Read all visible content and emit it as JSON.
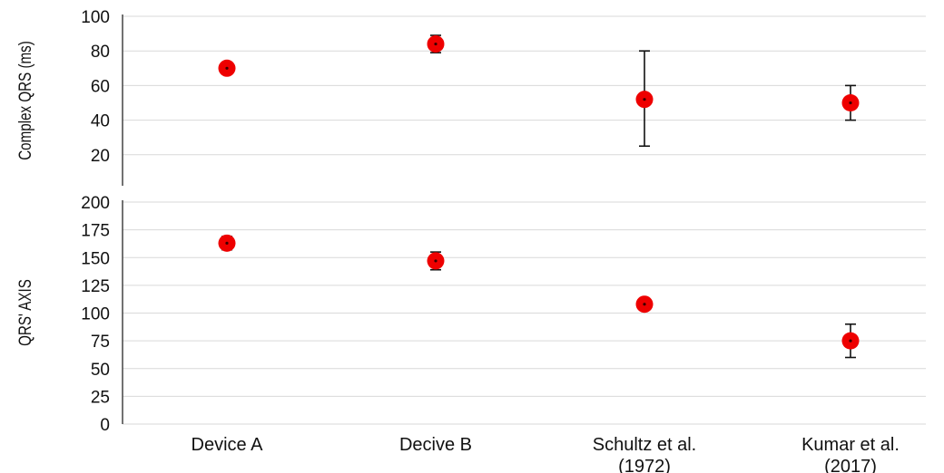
{
  "chart_data": [
    {
      "type": "scatter",
      "ylabel": "Complex QRS (ms)",
      "ylim": [
        20,
        100
      ],
      "yticks": [
        20,
        40,
        60,
        80,
        100
      ],
      "grid": true,
      "categories": [
        "Device A",
        "Decive B",
        "Schultz et al. (1972)",
        "Kumar et al. (2017)"
      ],
      "values": [
        70,
        84,
        52,
        50
      ],
      "error_low": [
        67,
        79,
        25,
        40
      ],
      "error_high": [
        73,
        89,
        80,
        60
      ]
    },
    {
      "type": "scatter",
      "ylabel": "QRS' AXIS",
      "ylim": [
        0,
        200
      ],
      "yticks": [
        0,
        25,
        50,
        75,
        100,
        125,
        150,
        175,
        200
      ],
      "grid": true,
      "categories": [
        "Device A",
        "Decive B",
        "Schultz et al. (1972)",
        "Kumar et al. (2017)"
      ],
      "values": [
        163,
        147,
        108,
        75
      ],
      "error_low": [
        157,
        139,
        108,
        60
      ],
      "error_high": [
        169,
        155,
        108,
        90
      ]
    }
  ],
  "x_labels": [
    [
      "Device A"
    ],
    [
      "Decive B"
    ],
    [
      "Schultz et al.",
      "(1972)"
    ],
    [
      "Kumar et al.",
      "(2017)"
    ]
  ],
  "colors": {
    "marker": "#ee0000",
    "error_bar": "#111111",
    "grid": "#d9d9d9"
  }
}
